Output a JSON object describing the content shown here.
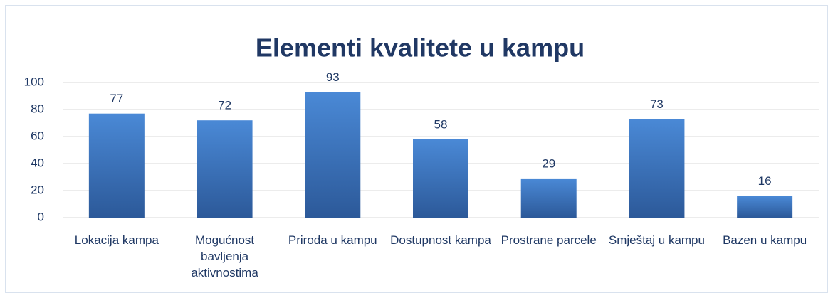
{
  "chart_data": {
    "type": "bar",
    "title": "Elementi kvalitete u kampu",
    "categories": [
      "Lokacija kampa",
      "Mogućnost bavljenja aktivnostima",
      "Priroda u kampu",
      "Dostupnost kampa",
      "Prostrane parcele",
      "Smještaj u kampu",
      "Bazen u kampu"
    ],
    "values": [
      77,
      72,
      93,
      58,
      29,
      73,
      16
    ],
    "color": "#3b70bf",
    "ylim": [
      0,
      100
    ],
    "yticks": [
      0,
      20,
      40,
      60,
      80,
      100
    ],
    "grid": true
  }
}
